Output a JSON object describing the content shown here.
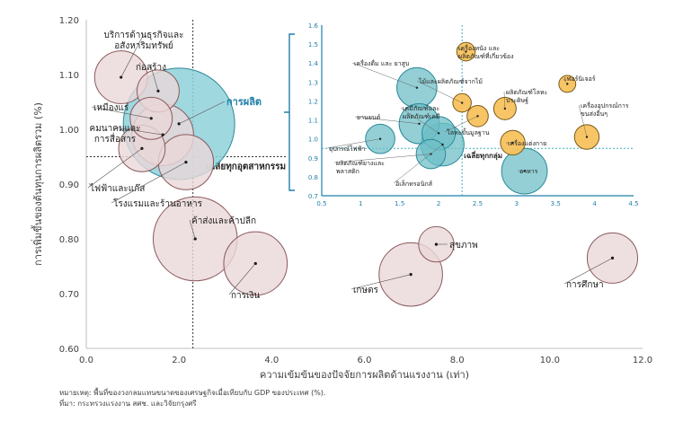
{
  "chart_data": {
    "type": "scatter",
    "xlabel": "ความเข้มข้นของปัจจัยการผลิตด้านแรงงาน (เท่า)",
    "ylabel": "การเพิ่มขึ้นของต้นทุนการผลิตรวม (%)",
    "xlim": [
      0,
      12
    ],
    "ylim": [
      0.6,
      1.2
    ],
    "xticks": [
      "0.0",
      "2.0",
      "4.0",
      "6.0",
      "8.0",
      "10.0",
      "12.0"
    ],
    "yticks": [
      "0.60",
      "0.70",
      "0.80",
      "0.90",
      "1.00",
      "1.10",
      "1.20"
    ],
    "grid": false,
    "reference_lines": {
      "x": 2.3,
      "y": 0.95,
      "x_label": "",
      "y_label": "เฉลี่ยทุกอุตสาหกรรม"
    },
    "sectors": [
      {
        "name": "การผลิต",
        "x": 2.0,
        "y": 1.01,
        "size": 100,
        "highlight": true
      },
      {
        "name": "บริการด้านธุรกิจและอสังหาริมทรัพย์",
        "x": 0.75,
        "y": 1.095,
        "size": 20
      },
      {
        "name": "ก่อสร้าง",
        "x": 1.55,
        "y": 1.07,
        "size": 12
      },
      {
        "name": "เหมืองแร่",
        "x": 1.4,
        "y": 1.02,
        "size": 12
      },
      {
        "name": "คมนาคมและการสื่อสาร",
        "x": 1.65,
        "y": 0.99,
        "size": 28
      },
      {
        "name": "ไฟฟ้าและแก๊ส",
        "x": 1.2,
        "y": 0.965,
        "size": 15
      },
      {
        "name": "โรงแรมและร้านอาหาร",
        "x": 2.15,
        "y": 0.94,
        "size": 22
      },
      {
        "name": "ค้าส่งและค้าปลีก",
        "x": 2.35,
        "y": 0.8,
        "size": 55
      },
      {
        "name": "การเงิน",
        "x": 3.65,
        "y": 0.755,
        "size": 30
      },
      {
        "name": "เกษตร",
        "x": 7.0,
        "y": 0.735,
        "size": 30
      },
      {
        "name": "สุขภาพ",
        "x": 7.55,
        "y": 0.79,
        "size": 8
      },
      {
        "name": "การศึกษา",
        "x": 11.35,
        "y": 0.765,
        "size": 18
      }
    ],
    "inset": {
      "xlim": [
        0.5,
        4.5
      ],
      "ylim": [
        0.7,
        1.6
      ],
      "xticks": [
        "0.5",
        "1",
        "1.5",
        "2",
        "2.5",
        "3",
        "3.5",
        "4",
        "4.5"
      ],
      "yticks": [
        "0.7",
        "0.8",
        "0.9",
        "1.0",
        "1.1",
        "1.2",
        "1.3",
        "1.4",
        "1.5",
        "1.6"
      ],
      "reference_lines": {
        "x": 2.3,
        "y": 0.95,
        "y_label": "เฉลี่ยทุกกลุ่ม"
      },
      "groups": [
        {
          "name": "เครื่องดื่ม และ ยาสูบ",
          "x": 1.72,
          "y": 1.27,
          "size": 30,
          "color": "#6fbfc7"
        },
        {
          "name": "เครื่องหนัง และผลิตภัณฑ์ที่เกี่ยวข้อง",
          "x": 2.35,
          "y": 1.46,
          "size": 5,
          "color": "#f7c25d"
        },
        {
          "name": "ไม้และผลิตภัณฑ์จากไม้",
          "x": 2.3,
          "y": 1.19,
          "size": 5,
          "color": "#f7c25d"
        },
        {
          "name": "ผลิตภัณฑ์โลหะประดิษฐ์",
          "x": 2.85,
          "y": 1.16,
          "size": 8,
          "color": "#f7c25d"
        },
        {
          "name": "เฟอร์นิเจอร์",
          "x": 3.65,
          "y": 1.29,
          "size": 4,
          "color": "#f7c25d"
        },
        {
          "name": "เครื่องอุปกรณ์การขนส่งอื่นๆ",
          "x": 3.9,
          "y": 1.01,
          "size": 10,
          "color": "#f7c25d"
        },
        {
          "name": "ยานยนต์",
          "x": 1.75,
          "y": 1.08,
          "size": 30,
          "color": "#6fbfc7"
        },
        {
          "name": "เคมีภัณฑ์และผลิตภัณฑ์เคมี",
          "x": 2.0,
          "y": 1.03,
          "size": 20,
          "color": "#6fbfc7"
        },
        {
          "name": "โลหะขั้นมูลฐาน",
          "x": 2.5,
          "y": 1.12,
          "size": 7,
          "color": "#f7c25d"
        },
        {
          "name": "อุปกรณ์ไฟฟ้า",
          "x": 1.25,
          "y": 1.0,
          "size": 15,
          "color": "#6fbfc7"
        },
        {
          "name": "ผลิตภัณฑ์ยางและพลาสติก",
          "x": 1.9,
          "y": 0.92,
          "size": 15,
          "color": "#6fbfc7"
        },
        {
          "name": "อิเล็กทรอนิกส์",
          "x": 2.05,
          "y": 0.97,
          "size": 35,
          "color": "#6fbfc7"
        },
        {
          "name": "เครื่องแต่งกาย",
          "x": 2.95,
          "y": 0.98,
          "size": 10,
          "color": "#f7c25d"
        },
        {
          "name": "อาหาร",
          "x": 3.1,
          "y": 0.83,
          "size": 40,
          "color": "#6fbfc7"
        }
      ]
    }
  },
  "notes": {
    "remark": "หมายเหตุ: พื้นที่ของวงกลมแทนขนาดของเศรษฐกิจเมื่อเทียบกับ GDP ของประเทศ (%).",
    "source": "ที่มา: กระทรวงแรงงาน สศช. และวิจัยกรุงศรี"
  },
  "colors": {
    "main_bubble": "#ead7d8",
    "main_bubble_stroke": "#8a5a5d",
    "highlight_bubble": "#8fd1da",
    "highlight_stroke": "#2a8a99",
    "highlight_text": "#1f7fa8",
    "inset_border": "#1f7fa8",
    "orange": "#f7c25d",
    "orange_stroke": "#7a5a1a",
    "teal": "#6fbfc7",
    "teal_stroke": "#2a8a99"
  }
}
